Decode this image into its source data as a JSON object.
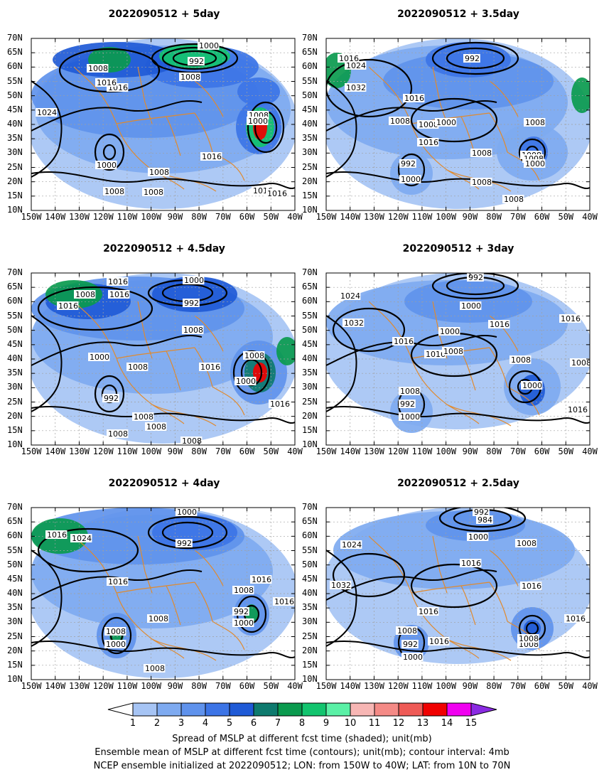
{
  "panels": [
    {
      "title": "2022090512  +  5day"
    },
    {
      "title": "2022090512  +  3.5day"
    },
    {
      "title": "2022090512  +  4.5day"
    },
    {
      "title": "2022090512  +  3day"
    },
    {
      "title": "2022090512  +  4day"
    },
    {
      "title": "2022090512  +  2.5day"
    }
  ],
  "axes": {
    "lat_labels": [
      "70N",
      "65N",
      "60N",
      "55N",
      "50N",
      "45N",
      "40N",
      "35N",
      "30N",
      "25N",
      "20N",
      "15N",
      "10N"
    ],
    "lon_labels": [
      "150W",
      "140W",
      "130W",
      "120W",
      "110W",
      "100W",
      "90W",
      "80W",
      "70W",
      "60W",
      "50W",
      "40W"
    ]
  },
  "colorbar": {
    "labels": [
      "1",
      "2",
      "3",
      "4",
      "5",
      "6",
      "7",
      "8",
      "9",
      "10",
      "11",
      "12",
      "13",
      "14",
      "15"
    ],
    "colors": [
      "#a6c4f4",
      "#7eaaf0",
      "#5f92ec",
      "#3c74e6",
      "#1f5ad6",
      "#0e7a6e",
      "#0a9a4e",
      "#12c46e",
      "#5af0a6",
      "#f7b6b4",
      "#f48a86",
      "#ee5a56",
      "#f00000",
      "#f000f0",
      "#8a2be2"
    ]
  },
  "footer": {
    "line1": "Spread of MSLP at different fcst time (shaded); unit(mb)",
    "line2": "Ensemble mean of MSLP at different fcst time (contours); unit(mb); contour interval: 4mb",
    "line3": "NCEP ensemble initialized at 2022090512; LON: from 150W to 40W; LAT: from 10N to 70N"
  },
  "contour_labels": [
    [
      "1000",
      "992",
      "1008",
      "1016",
      "1008",
      "1016",
      "1024",
      "1000",
      "1008",
      "1008",
      "1016",
      "1008",
      "1016",
      "1008",
      "1000",
      "1016"
    ],
    [
      "1016",
      "1024",
      "992",
      "1032",
      "1016",
      "1008",
      "1008",
      "1000",
      "1016",
      "1008",
      "1008",
      "992",
      "1000",
      "1008",
      "1008",
      "1008",
      "1000",
      "1008"
    ],
    [
      "1016",
      "1016",
      "1008",
      "1016",
      "1000",
      "992",
      "1008",
      "1000",
      "1008",
      "1016",
      "1008",
      "1000",
      "992",
      "1008",
      "1008",
      "1016",
      "1008",
      "1008"
    ],
    [
      "992",
      "1024",
      "1000",
      "1032",
      "1000",
      "1016",
      "1016",
      "1008",
      "1016",
      "1016",
      "1008",
      "1008",
      "992",
      "1000",
      "1000",
      "1016",
      "1008"
    ],
    [
      "1000",
      "1016",
      "1024",
      "992",
      "1016",
      "1016",
      "1008",
      "992",
      "1000",
      "1008",
      "1000",
      "1008",
      "1008",
      "1016"
    ],
    [
      "992",
      "984",
      "1000",
      "1024",
      "1008",
      "1016",
      "1032",
      "1016",
      "1016",
      "1016",
      "1008",
      "992",
      "1000",
      "1016",
      "1008",
      "1008"
    ]
  ]
}
